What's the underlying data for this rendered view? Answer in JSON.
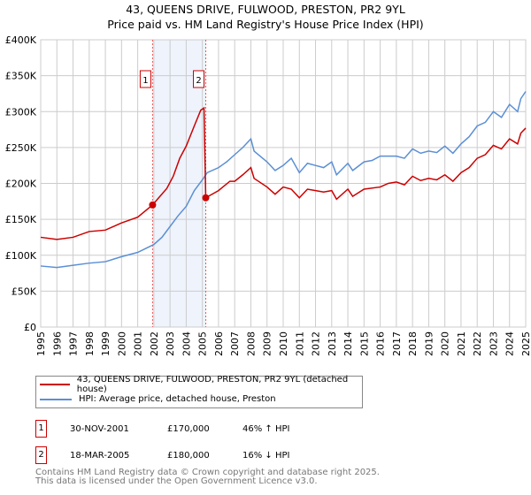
{
  "chart_data": {
    "type": "line",
    "title": "43, QUEENS DRIVE, FULWOOD, PRESTON, PR2 9YL",
    "subtitle": "Price paid vs. HM Land Registry's House Price Index (HPI)",
    "ylim": [
      0,
      400000
    ],
    "xlim": [
      1995,
      2025
    ],
    "yticks": [
      {
        "v": 0,
        "label": "£0"
      },
      {
        "v": 50000,
        "label": "£50K"
      },
      {
        "v": 100000,
        "label": "£100K"
      },
      {
        "v": 150000,
        "label": "£150K"
      },
      {
        "v": 200000,
        "label": "£200K"
      },
      {
        "v": 250000,
        "label": "£250K"
      },
      {
        "v": 300000,
        "label": "£300K"
      },
      {
        "v": 350000,
        "label": "£350K"
      },
      {
        "v": 400000,
        "label": "£400K"
      }
    ],
    "xticks": [
      "1995",
      "1996",
      "1997",
      "1998",
      "1999",
      "2000",
      "2001",
      "2002",
      "2003",
      "2004",
      "2005",
      "2006",
      "2007",
      "2008",
      "2009",
      "2010",
      "2011",
      "2012",
      "2013",
      "2014",
      "2015",
      "2016",
      "2017",
      "2018",
      "2019",
      "2020",
      "2021",
      "2022",
      "2023",
      "2024",
      "2025"
    ],
    "grid": true,
    "series": [
      {
        "name": "43, QUEENS DRIVE, FULWOOD, PRESTON, PR2 9YL (detached house)",
        "color": "#cc0000",
        "x": [
          1995,
          1996,
          1997,
          1998,
          1999,
          2000,
          2001,
          2001.92,
          2002.3,
          2002.8,
          2003.2,
          2003.6,
          2004,
          2004.5,
          2004.9,
          2005.1,
          2005.21,
          2006,
          2006.7,
          2007,
          2007.5,
          2008,
          2008.2,
          2009,
          2009.5,
          2010,
          2010.5,
          2011,
          2011.5,
          2012,
          2012.5,
          2013,
          2013.3,
          2014,
          2014.3,
          2015,
          2016,
          2016.5,
          2017,
          2017.5,
          2018,
          2018.5,
          2019,
          2019.5,
          2020,
          2020.5,
          2021,
          2021.5,
          2022,
          2022.5,
          2023,
          2023.5,
          2024,
          2024.5,
          2024.7,
          2025
        ],
        "y": [
          125000,
          122000,
          125000,
          133000,
          135000,
          145000,
          153000,
          170000,
          180000,
          193000,
          210000,
          235000,
          252000,
          280000,
          302000,
          305000,
          180000,
          190000,
          203000,
          203000,
          212000,
          222000,
          207000,
          195000,
          185000,
          195000,
          192000,
          180000,
          192000,
          190000,
          188000,
          190000,
          178000,
          192000,
          182000,
          192000,
          195000,
          200000,
          202000,
          198000,
          210000,
          204000,
          207000,
          205000,
          212000,
          203000,
          215000,
          222000,
          235000,
          240000,
          253000,
          248000,
          262000,
          255000,
          270000,
          277000
        ]
      },
      {
        "name": "HPI: Average price, detached house, Preston",
        "color": "#5b8fd4",
        "x": [
          1995,
          1996,
          1997,
          1998,
          1999,
          2000,
          2001,
          2002,
          2002.5,
          2003,
          2003.5,
          2004,
          2004.5,
          2005,
          2005.3,
          2006,
          2006.5,
          2007,
          2007.5,
          2008,
          2008.2,
          2009,
          2009.5,
          2010,
          2010.5,
          2011,
          2011.5,
          2012,
          2012.5,
          2013,
          2013.3,
          2014,
          2014.3,
          2015,
          2015.5,
          2016,
          2017,
          2017.5,
          2018,
          2018.5,
          2019,
          2019.5,
          2020,
          2020.5,
          2021,
          2021.5,
          2022,
          2022.5,
          2023,
          2023.5,
          2024,
          2024.5,
          2024.7,
          2025
        ],
        "y": [
          85000,
          83000,
          86000,
          89000,
          91000,
          98000,
          104000,
          115000,
          125000,
          140000,
          155000,
          168000,
          190000,
          205000,
          215000,
          222000,
          230000,
          240000,
          250000,
          262000,
          245000,
          230000,
          218000,
          225000,
          235000,
          215000,
          228000,
          225000,
          222000,
          230000,
          212000,
          228000,
          218000,
          230000,
          232000,
          238000,
          238000,
          235000,
          248000,
          242000,
          245000,
          243000,
          252000,
          242000,
          255000,
          265000,
          280000,
          285000,
          300000,
          292000,
          310000,
          300000,
          318000,
          328000
        ]
      }
    ],
    "transactions": [
      {
        "id": "1",
        "x": 2001.92,
        "price": 170000,
        "date": "30-NOV-2001",
        "price_label": "£170,000",
        "hpi": "46% ↑ HPI"
      },
      {
        "id": "2",
        "x": 2005.21,
        "price": 180000,
        "date": "18-MAR-2005",
        "price_label": "£180,000",
        "hpi": "16% ↓ HPI"
      }
    ]
  },
  "footer": {
    "line1": "Contains HM Land Registry data © Crown copyright and database right 2025.",
    "line2": "This data is licensed under the Open Government Licence v3.0."
  }
}
